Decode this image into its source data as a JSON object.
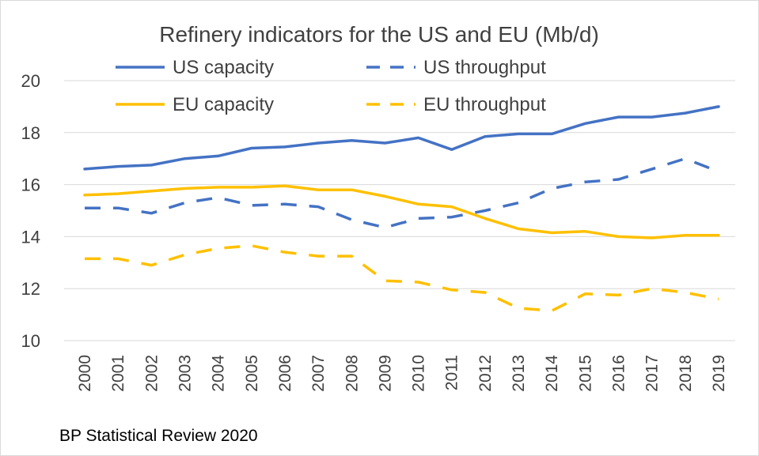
{
  "chart_data": {
    "type": "line",
    "title": "Refinery indicators for the US and EU (Mb/d)",
    "xlabel": "",
    "ylabel": "",
    "ylim": [
      10,
      20
    ],
    "yticks": [
      10,
      12,
      14,
      16,
      18,
      20
    ],
    "grid": true,
    "legend_position": "top",
    "categories": [
      "2000",
      "2001",
      "2002",
      "2003",
      "2004",
      "2005",
      "2006",
      "2007",
      "2008",
      "2009",
      "2010",
      "2011",
      "2012",
      "2013",
      "2014",
      "2015",
      "2016",
      "2017",
      "2018",
      "2019"
    ],
    "series": [
      {
        "name": "US capacity",
        "color": "#4472C4",
        "style": "solid",
        "values": [
          16.6,
          16.7,
          16.75,
          17.0,
          17.1,
          17.4,
          17.45,
          17.6,
          17.7,
          17.6,
          17.8,
          17.35,
          17.85,
          17.95,
          17.95,
          18.35,
          18.6,
          18.6,
          18.75,
          19.0
        ]
      },
      {
        "name": "US throughput",
        "color": "#4472C4",
        "style": "dashed",
        "values": [
          15.1,
          15.1,
          14.9,
          15.3,
          15.5,
          15.2,
          15.25,
          15.15,
          14.65,
          14.35,
          14.7,
          14.75,
          15.0,
          15.3,
          15.85,
          16.1,
          16.2,
          16.6,
          17.0,
          16.5
        ]
      },
      {
        "name": "EU capacity",
        "color": "#FFC000",
        "style": "solid",
        "values": [
          15.6,
          15.65,
          15.75,
          15.85,
          15.9,
          15.9,
          15.95,
          15.8,
          15.8,
          15.55,
          15.25,
          15.15,
          14.7,
          14.3,
          14.15,
          14.2,
          14.0,
          13.95,
          14.05,
          14.05
        ]
      },
      {
        "name": "EU throughput",
        "color": "#FFC000",
        "style": "dashed",
        "values": [
          13.15,
          13.15,
          12.9,
          13.3,
          13.55,
          13.65,
          13.4,
          13.25,
          13.25,
          12.3,
          12.25,
          11.95,
          11.85,
          11.25,
          11.15,
          11.8,
          11.75,
          12.0,
          11.85,
          11.6
        ]
      }
    ]
  },
  "footer": {
    "source": "BP Statistical Review 2020"
  }
}
